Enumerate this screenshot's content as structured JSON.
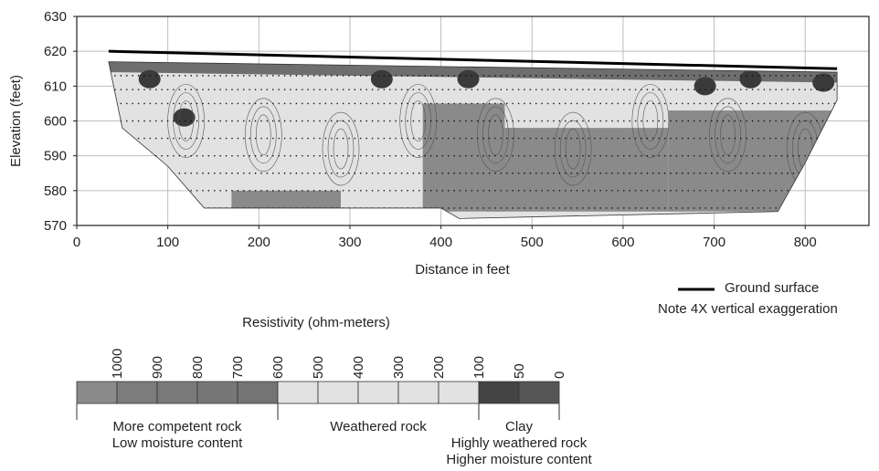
{
  "chart_data": {
    "type": "heatmap",
    "title": "",
    "xlabel": "Distance in feet",
    "ylabel": "Elevation (feet)",
    "xlim": [
      0,
      870
    ],
    "ylim": [
      570,
      630
    ],
    "xticks": [
      0,
      100,
      200,
      300,
      400,
      500,
      600,
      700,
      800
    ],
    "yticks": [
      570,
      580,
      590,
      600,
      610,
      620,
      630
    ],
    "grid": true,
    "ground_surface": {
      "x": [
        35,
        835
      ],
      "y": [
        620,
        615
      ]
    },
    "section_outline": {
      "x": [
        35,
        835,
        835,
        800,
        770,
        420,
        400,
        150,
        140,
        100,
        50,
        35
      ],
      "y": [
        617,
        614,
        606,
        588,
        574,
        572,
        575,
        575,
        575,
        587,
        598,
        617
      ]
    },
    "electrode_rows": [
      613,
      609,
      605,
      600,
      595,
      590,
      585,
      580,
      575
    ],
    "clay_patches": [
      {
        "x": 80,
        "y": 612
      },
      {
        "x": 118,
        "y": 601
      },
      {
        "x": 335,
        "y": 612
      },
      {
        "x": 430,
        "y": 612
      },
      {
        "x": 690,
        "y": 610
      },
      {
        "x": 740,
        "y": 612
      },
      {
        "x": 820,
        "y": 611
      }
    ],
    "competent_rock_zones": [
      {
        "x": [
          380,
          470
        ],
        "y": [
          574,
          605
        ]
      },
      {
        "x": [
          450,
          650
        ],
        "y": [
          574,
          598
        ]
      },
      {
        "x": [
          650,
          830
        ],
        "y": [
          574,
          603
        ]
      },
      {
        "x": [
          170,
          290
        ],
        "y": [
          575,
          580
        ]
      }
    ],
    "legend": {
      "ground_surface_label": "Ground surface",
      "note": "Note 4X vertical exaggeration"
    },
    "colorbar": {
      "title": "Resistivity (ohm-meters)",
      "ticks": [
        "1000",
        "900",
        "800",
        "700",
        "600",
        "500",
        "400",
        "300",
        "200",
        "100",
        "50",
        "0"
      ],
      "cells": [
        {
          "upper": 1000,
          "lower": 900,
          "color": "#8a8a8a"
        },
        {
          "upper": 900,
          "lower": 800,
          "color": "#7c7c7c"
        },
        {
          "upper": 800,
          "lower": 700,
          "color": "#7a7a7a"
        },
        {
          "upper": 700,
          "lower": 600,
          "color": "#777777"
        },
        {
          "upper": 600,
          "lower": 500,
          "color": "#747474"
        },
        {
          "upper": 500,
          "lower": 400,
          "color": "#e2e2e2"
        },
        {
          "upper": 400,
          "lower": 300,
          "color": "#e2e2e2"
        },
        {
          "upper": 300,
          "lower": 200,
          "color": "#e2e2e2"
        },
        {
          "upper": 200,
          "lower": 100,
          "color": "#e2e2e2"
        },
        {
          "upper": 100,
          "lower": 0,
          "color": "#e2e2e2"
        },
        {
          "upper": 50,
          "lower": 25,
          "color": "#444444"
        },
        {
          "upper": 25,
          "lower": 0,
          "color": "#555555"
        }
      ],
      "groups": [
        {
          "lines": [
            "More competent rock",
            "Low moisture content"
          ]
        },
        {
          "lines": [
            "Weathered rock"
          ]
        },
        {
          "lines": [
            "Clay",
            "Highly weathered rock",
            "Higher moisture content"
          ]
        }
      ]
    },
    "colors": {
      "clay": "#3a3a3a",
      "weathered": "#e2e2e2",
      "competent": "#8a8a8a",
      "ground_line": "#000000"
    }
  }
}
